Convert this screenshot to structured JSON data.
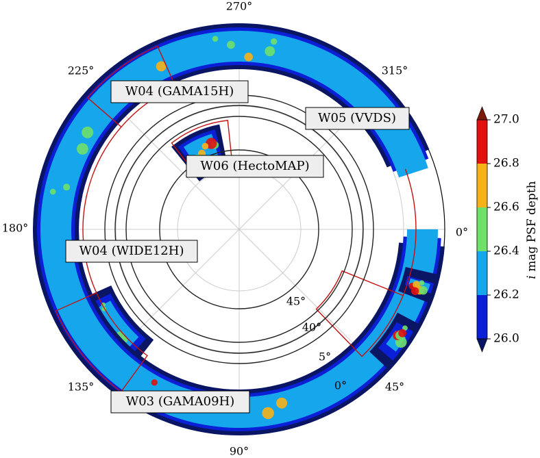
{
  "chart_data": {
    "type": "heatmap",
    "projection": "polar",
    "title": "",
    "angle_ticks": [
      "0°",
      "45°",
      "90°",
      "135°",
      "180°",
      "225°",
      "270°",
      "315°"
    ],
    "radial_ticks": [
      "45°",
      "40°",
      "5°",
      "0°"
    ],
    "fields": [
      {
        "name": "W04 (GAMA15H)"
      },
      {
        "name": "W05 (VVDS)"
      },
      {
        "name": "W06 (HectoMAP)"
      },
      {
        "name": "W04 (WIDE12H)"
      },
      {
        "name": "W03 (GAMA09H)"
      }
    ],
    "colorbar": {
      "label": "i mag PSF depth",
      "label_italic_part": "i",
      "label_rest": " mag PSF depth",
      "range": [
        26.0,
        27.0
      ],
      "ticks": [
        "26.0",
        "26.2",
        "26.4",
        "26.6",
        "26.8",
        "27.0"
      ],
      "bins": [
        {
          "from": 26.0,
          "to": 26.2,
          "color": "#0a1fd6"
        },
        {
          "from": 26.2,
          "to": 26.4,
          "color": "#16a6ec"
        },
        {
          "from": 26.4,
          "to": 26.6,
          "color": "#6fe06a"
        },
        {
          "from": 26.6,
          "to": 26.8,
          "color": "#f7b21a"
        },
        {
          "from": 26.8,
          "to": 27.0,
          "color": "#e0120e"
        }
      ],
      "under_color": "#0a1564",
      "over_color": "#7a1a08",
      "extend": "both"
    },
    "colors": {
      "grid": "#cccccc",
      "outline": "#c41010",
      "ring": "#222222",
      "label_box": "#eeeeee"
    }
  }
}
